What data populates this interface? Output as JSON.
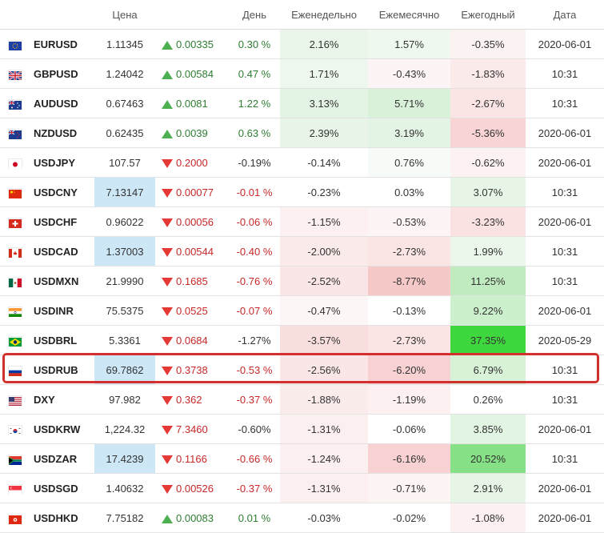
{
  "headers": [
    "",
    "",
    "Цена",
    "",
    "День",
    "Еженедельно",
    "Ежемесячно",
    "Ежегодный",
    "Дата"
  ],
  "rows": [
    {
      "symbol": "EURUSD",
      "flag": "eu-flag-icon",
      "price": "1.11345",
      "price_hl": false,
      "dir": "up",
      "chg": "0.00335",
      "day": "0.30 %",
      "day_cls": "pos",
      "week": "2.16%",
      "week_bg": "#eaf6ea",
      "month": "1.57%",
      "month_bg": "#eef8ee",
      "year": "-0.35%",
      "year_bg": "#fbf2f2",
      "date": "2020-06-01"
    },
    {
      "symbol": "GBPUSD",
      "flag": "gb-flag-icon",
      "price": "1.24042",
      "price_hl": false,
      "dir": "up",
      "chg": "0.00584",
      "day": "0.47 %",
      "day_cls": "pos",
      "week": "1.71%",
      "week_bg": "#edf7ed",
      "month": "-0.43%",
      "month_bg": "#fdf5f5",
      "year": "-1.83%",
      "year_bg": "#fbeaea",
      "date": "10:31"
    },
    {
      "symbol": "AUDUSD",
      "flag": "au-flag-icon",
      "price": "0.67463",
      "price_hl": false,
      "dir": "up",
      "chg": "0.0081",
      "day": "1.22 %",
      "day_cls": "pos",
      "week": "3.13%",
      "week_bg": "#e4f4e4",
      "month": "5.71%",
      "month_bg": "#d9f0d9",
      "year": "-2.67%",
      "year_bg": "#fae4e4",
      "date": "10:31"
    },
    {
      "symbol": "NZDUSD",
      "flag": "nz-flag-icon",
      "price": "0.62435",
      "price_hl": false,
      "dir": "up",
      "chg": "0.0039",
      "day": "0.63 %",
      "day_cls": "pos",
      "week": "2.39%",
      "week_bg": "#e8f5e8",
      "month": "3.19%",
      "month_bg": "#e4f4e4",
      "year": "-5.36%",
      "year_bg": "#f8d4d4",
      "date": "2020-06-01"
    },
    {
      "symbol": "USDJPY",
      "flag": "jp-flag-icon",
      "price": "107.57",
      "price_hl": false,
      "dir": "down",
      "chg": "0.2000",
      "day": "-0.19%",
      "day_cls": "neutral",
      "week": "-0.14%",
      "week_bg": "#ffffff",
      "month": "0.76%",
      "month_bg": "#f7fbf7",
      "year": "-0.62%",
      "year_bg": "#fcf2f2",
      "date": "2020-06-01"
    },
    {
      "symbol": "USDCNY",
      "flag": "cn-flag-icon",
      "price": "7.13147",
      "price_hl": true,
      "dir": "down",
      "chg": "0.00077",
      "day": "-0.01 %",
      "day_cls": "neg",
      "week": "-0.23%",
      "week_bg": "#ffffff",
      "month": "0.03%",
      "month_bg": "#ffffff",
      "year": "3.07%",
      "year_bg": "#e6f5e6",
      "date": "10:31"
    },
    {
      "symbol": "USDCHF",
      "flag": "ch-flag-icon",
      "price": "0.96022",
      "price_hl": false,
      "dir": "down",
      "chg": "0.00056",
      "day": "-0.06 %",
      "day_cls": "neg",
      "week": "-1.15%",
      "week_bg": "#fcf0f0",
      "month": "-0.53%",
      "month_bg": "#fdf5f5",
      "year": "-3.23%",
      "year_bg": "#fae2e2",
      "date": "2020-06-01"
    },
    {
      "symbol": "USDCAD",
      "flag": "ca-flag-icon",
      "price": "1.37003",
      "price_hl": true,
      "dir": "down",
      "chg": "0.00544",
      "day": "-0.40 %",
      "day_cls": "neg",
      "week": "-2.00%",
      "week_bg": "#fbeaea",
      "month": "-2.73%",
      "month_bg": "#fae4e4",
      "year": "1.99%",
      "year_bg": "#ecf7ec",
      "date": "10:31"
    },
    {
      "symbol": "USDMXN",
      "flag": "mx-flag-icon",
      "price": "21.9990",
      "price_hl": false,
      "dir": "down",
      "chg": "0.1685",
      "day": "-0.76 %",
      "day_cls": "neg",
      "week": "-2.52%",
      "week_bg": "#fae6e6",
      "month": "-8.77%",
      "month_bg": "#f6c9c9",
      "year": "11.25%",
      "year_bg": "#c0ebc0",
      "date": "10:31"
    },
    {
      "symbol": "USDINR",
      "flag": "in-flag-icon",
      "price": "75.5375",
      "price_hl": false,
      "dir": "down",
      "chg": "0.0525",
      "day": "-0.07 %",
      "day_cls": "neg",
      "week": "-0.47%",
      "week_bg": "#fdf6f6",
      "month": "-0.13%",
      "month_bg": "#ffffff",
      "year": "9.22%",
      "year_bg": "#ccefcc",
      "date": "2020-06-01"
    },
    {
      "symbol": "USDBRL",
      "flag": "br-flag-icon",
      "price": "5.3361",
      "price_hl": false,
      "dir": "down",
      "chg": "0.0684",
      "day": "-1.27%",
      "day_cls": "neutral",
      "week": "-3.57%",
      "week_bg": "#f9dede",
      "month": "-2.73%",
      "month_bg": "#fae4e4",
      "year": "37.35%",
      "year_bg": "#3ed83e",
      "date": "2020-05-29"
    },
    {
      "symbol": "USDRUB",
      "flag": "ru-flag-icon",
      "price": "69.7862",
      "price_hl": true,
      "dir": "down",
      "chg": "0.3738",
      "day": "-0.53 %",
      "day_cls": "neg",
      "week": "-2.56%",
      "week_bg": "#fae6e6",
      "month": "-6.20%",
      "month_bg": "#f8d2d2",
      "year": "6.79%",
      "year_bg": "#d7f2d7",
      "date": "10:31"
    },
    {
      "symbol": "DXY",
      "flag": "us-flag-icon",
      "price": "97.982",
      "price_hl": false,
      "dir": "down",
      "chg": "0.362",
      "day": "-0.37 %",
      "day_cls": "neg",
      "week": "-1.88%",
      "week_bg": "#fbecec",
      "month": "-1.19%",
      "month_bg": "#fcf0f0",
      "year": "0.26%",
      "year_bg": "#ffffff",
      "date": "10:31"
    },
    {
      "symbol": "USDKRW",
      "flag": "kr-flag-icon",
      "price": "1,224.32",
      "price_hl": false,
      "dir": "down",
      "chg": "7.3460",
      "day": "-0.60%",
      "day_cls": "neutral",
      "week": "-1.31%",
      "week_bg": "#fcefef",
      "month": "-0.06%",
      "month_bg": "#ffffff",
      "year": "3.85%",
      "year_bg": "#e2f4e2",
      "date": "2020-06-01"
    },
    {
      "symbol": "USDZAR",
      "flag": "za-flag-icon",
      "price": "17.4239",
      "price_hl": true,
      "dir": "down",
      "chg": "0.1166",
      "day": "-0.66 %",
      "day_cls": "neg",
      "week": "-1.24%",
      "week_bg": "#fcefef",
      "month": "-6.16%",
      "month_bg": "#f8d2d2",
      "year": "20.52%",
      "year_bg": "#86e086",
      "date": "10:31"
    },
    {
      "symbol": "USDSGD",
      "flag": "sg-flag-icon",
      "price": "1.40632",
      "price_hl": false,
      "dir": "down",
      "chg": "0.00526",
      "day": "-0.37 %",
      "day_cls": "neg",
      "week": "-1.31%",
      "week_bg": "#fcefef",
      "month": "-0.71%",
      "month_bg": "#fdf4f4",
      "year": "2.91%",
      "year_bg": "#e6f5e6",
      "date": "2020-06-01"
    },
    {
      "symbol": "USDHKD",
      "flag": "hk-flag-icon",
      "price": "7.75182",
      "price_hl": false,
      "dir": "up",
      "chg": "0.00083",
      "day": "0.01 %",
      "day_cls": "pos",
      "week": "-0.03%",
      "week_bg": "#ffffff",
      "month": "-0.02%",
      "month_bg": "#ffffff",
      "year": "-1.08%",
      "year_bg": "#fcf0f0",
      "date": "2020-06-01"
    }
  ],
  "colors": {
    "highlight_border": "#d32f2f",
    "price_highlight": "#cde7f7",
    "up": "#4caf50",
    "down": "#e53935"
  }
}
